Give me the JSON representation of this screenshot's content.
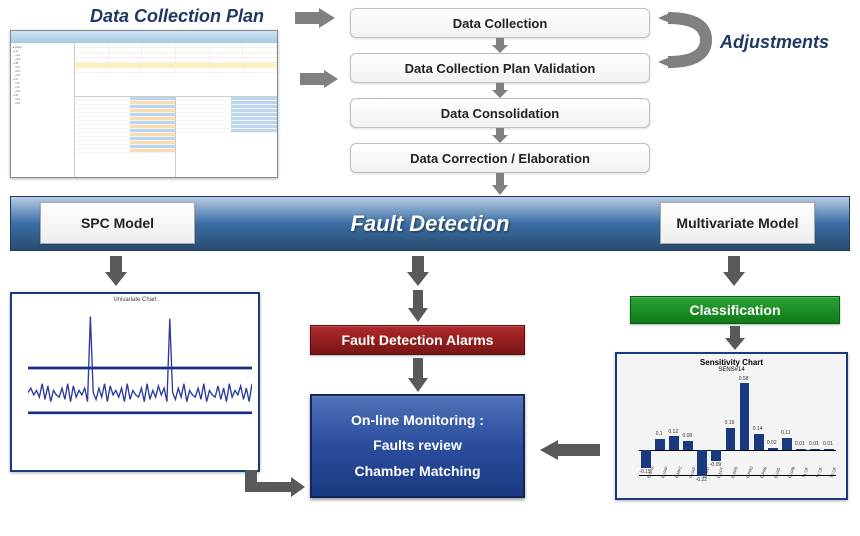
{
  "labels": {
    "data_collection_plan": "Data Collection Plan",
    "adjustments": "Adjustments"
  },
  "steps": {
    "s1": "Data Collection",
    "s2": "Data Collection Plan Validation",
    "s3": "Data Consolidation",
    "s4": "Data Correction / Elaboration"
  },
  "fd": {
    "title": "Fault Detection",
    "left_card": "SPC Model",
    "right_card": "Multivariate Model"
  },
  "below": {
    "alarms": "Fault Detection Alarms",
    "classification": "Classification",
    "monitor_l1": "On-line Monitoring :",
    "monitor_l2": "Faults review",
    "monitor_l3": "Chamber Matching"
  },
  "colors": {
    "arrow": "#808080",
    "arrow_dark": "#595959",
    "bar_grad_top": "#b7cde4",
    "bar_grad_mid": "#3a6ea5",
    "bar_grad_bot": "#2a4d6e",
    "alarm_top": "#b02a2a",
    "alarm_bot": "#7a1515",
    "class_top": "#2aa336",
    "class_bot": "#0f7a1a",
    "monitor_top": "#4f72b8",
    "monitor_bot": "#1a3a80",
    "frame_border": "#1a3a80"
  },
  "spc_chart": {
    "title": "Univariate Chart",
    "ucl_y": 0.75,
    "lcl_y": 0.55,
    "series_color": "#2a3a9e",
    "limit_color": "#1a2a8e",
    "points": [
      0.64,
      0.66,
      0.63,
      0.65,
      0.62,
      0.68,
      0.61,
      0.67,
      0.6,
      0.65,
      0.63,
      0.62,
      0.66,
      0.61,
      0.68,
      0.6,
      0.67,
      0.62,
      0.65,
      0.63,
      0.66,
      0.6,
      0.98,
      0.64,
      0.61,
      0.66,
      0.62,
      0.68,
      0.6,
      0.67,
      0.63,
      0.65,
      0.62,
      0.66,
      0.6,
      0.68,
      0.61,
      0.65,
      0.63,
      0.62,
      0.66,
      0.6,
      0.68,
      0.61,
      0.65,
      0.62,
      0.67,
      0.63,
      0.66,
      0.6,
      0.97,
      0.64,
      0.61,
      0.66,
      0.62,
      0.68,
      0.6,
      0.65,
      0.63,
      0.62,
      0.66,
      0.61,
      0.68,
      0.6,
      0.65,
      0.63,
      0.62,
      0.67,
      0.61,
      0.66,
      0.6,
      0.68,
      0.62,
      0.65,
      0.63,
      0.67,
      0.61,
      0.66,
      0.6,
      0.68
    ]
  },
  "sens_chart": {
    "title": "Sensitivity Chart",
    "subtitle": "SENS#14",
    "bar_color": "#1a3a80",
    "bg_color": "#f4f4f4",
    "values": [
      -0.15,
      0.1,
      0.12,
      0.08,
      -0.22,
      -0.09,
      0.19,
      0.58,
      0.14,
      0.02,
      0.11,
      0.013,
      0.015,
      0.012
    ],
    "x_labels": [
      "E GAS",
      "E UAP",
      "E MFC",
      "F UAP",
      "E AFP",
      "E EFT",
      "E SPD",
      "E PRD",
      "E PRE",
      "E UID",
      "E UAB",
      "T1 OF",
      "T2 OF",
      "T3 OF"
    ]
  }
}
